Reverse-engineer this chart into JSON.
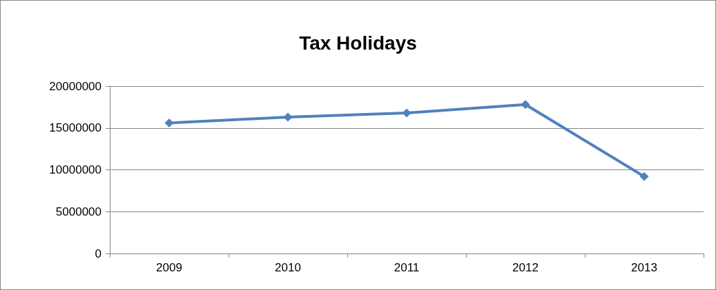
{
  "chart_data": {
    "type": "line",
    "title": "Tax Holidays",
    "categories": [
      "2009",
      "2010",
      "2011",
      "2012",
      "2013"
    ],
    "series": [
      {
        "color": "#4f81bd",
        "values": [
          15600000,
          16300000,
          16800000,
          17800000,
          9200000
        ]
      }
    ],
    "ylim": [
      0,
      20000000
    ],
    "yticks": [
      0,
      5000000,
      10000000,
      15000000,
      20000000
    ],
    "grid": "y",
    "marker": "diamond",
    "line_style": "solid"
  }
}
